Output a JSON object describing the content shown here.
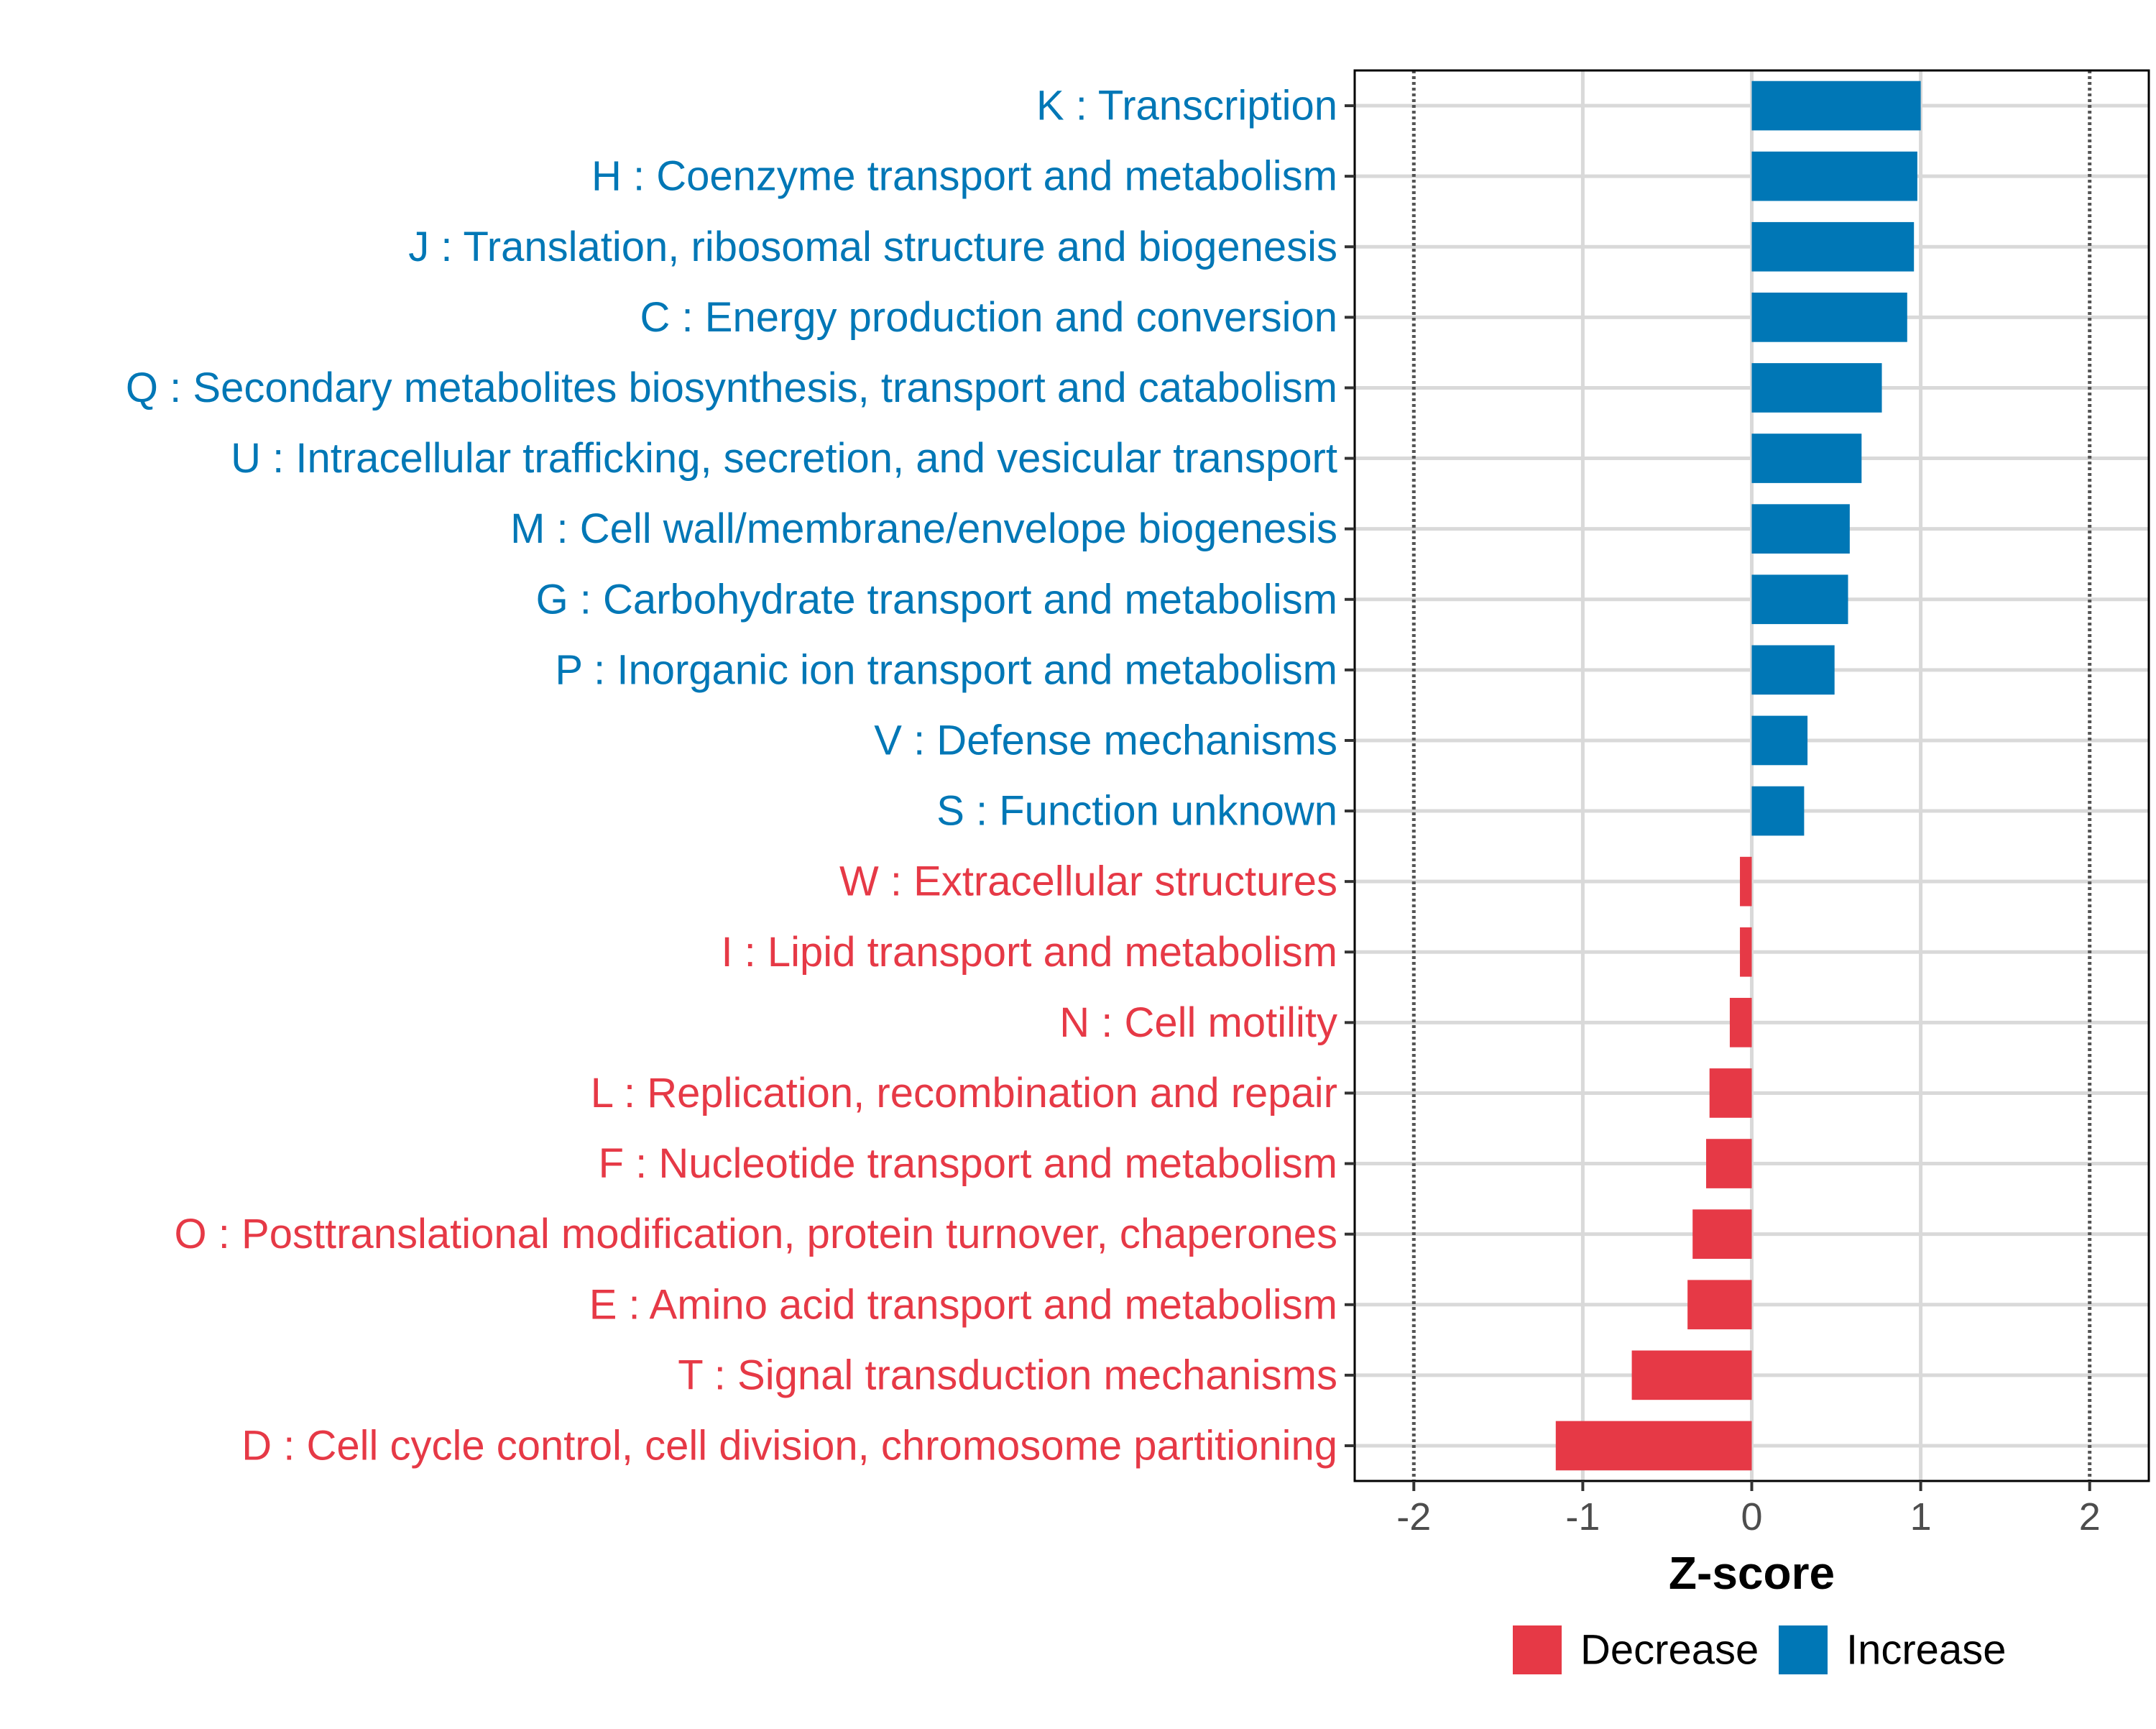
{
  "chart_data": {
    "type": "bar",
    "orientation": "horizontal",
    "xlabel": "Z-score",
    "ylabel": "",
    "xlim": [
      -2.35,
      2.35
    ],
    "x_ticks": [
      "-2",
      "-1",
      "0",
      "1",
      "2"
    ],
    "x_tick_values": [
      -2,
      -1,
      0,
      1,
      2
    ],
    "reference_lines": [
      -2,
      2
    ],
    "grid": true,
    "categories": [
      "K : Transcription",
      "H : Coenzyme transport and metabolism",
      "J : Translation, ribosomal structure and biogenesis",
      "C : Energy production and conversion",
      "Q : Secondary metabolites biosynthesis, transport and catabolism",
      "U : Intracellular trafficking, secretion, and vesicular transport",
      "M : Cell wall/membrane/envelope biogenesis",
      "G : Carbohydrate transport and metabolism",
      "P : Inorganic ion transport and metabolism",
      "V : Defense mechanisms",
      "S : Function unknown",
      "W : Extracellular structures",
      "I : Lipid transport and metabolism",
      "N : Cell motility",
      "L : Replication, recombination and repair",
      "F : Nucleotide transport and metabolism",
      "O : Posttranslational modification, protein turnover, chaperones",
      "E : Amino acid transport and metabolism",
      "T : Signal transduction mechanisms",
      "D : Cell cycle control, cell division, chromosome partitioning"
    ],
    "values": [
      1.0,
      0.98,
      0.96,
      0.92,
      0.77,
      0.65,
      0.58,
      0.57,
      0.49,
      0.33,
      0.31,
      -0.07,
      -0.07,
      -0.13,
      -0.25,
      -0.27,
      -0.35,
      -0.38,
      -0.71,
      -1.16
    ],
    "groups": [
      "Increase",
      "Increase",
      "Increase",
      "Increase",
      "Increase",
      "Increase",
      "Increase",
      "Increase",
      "Increase",
      "Increase",
      "Increase",
      "Decrease",
      "Decrease",
      "Decrease",
      "Decrease",
      "Decrease",
      "Decrease",
      "Decrease",
      "Decrease",
      "Decrease"
    ],
    "legend": {
      "position": "bottom",
      "entries": [
        {
          "label": "Decrease",
          "color": "#E63946"
        },
        {
          "label": "Increase",
          "color": "#0077B6"
        }
      ]
    },
    "colors": {
      "Decrease": "#E63946",
      "Increase": "#0077B6",
      "grid": "#d9d9d9",
      "frame": "#000000",
      "reference_line": "#555555"
    }
  }
}
